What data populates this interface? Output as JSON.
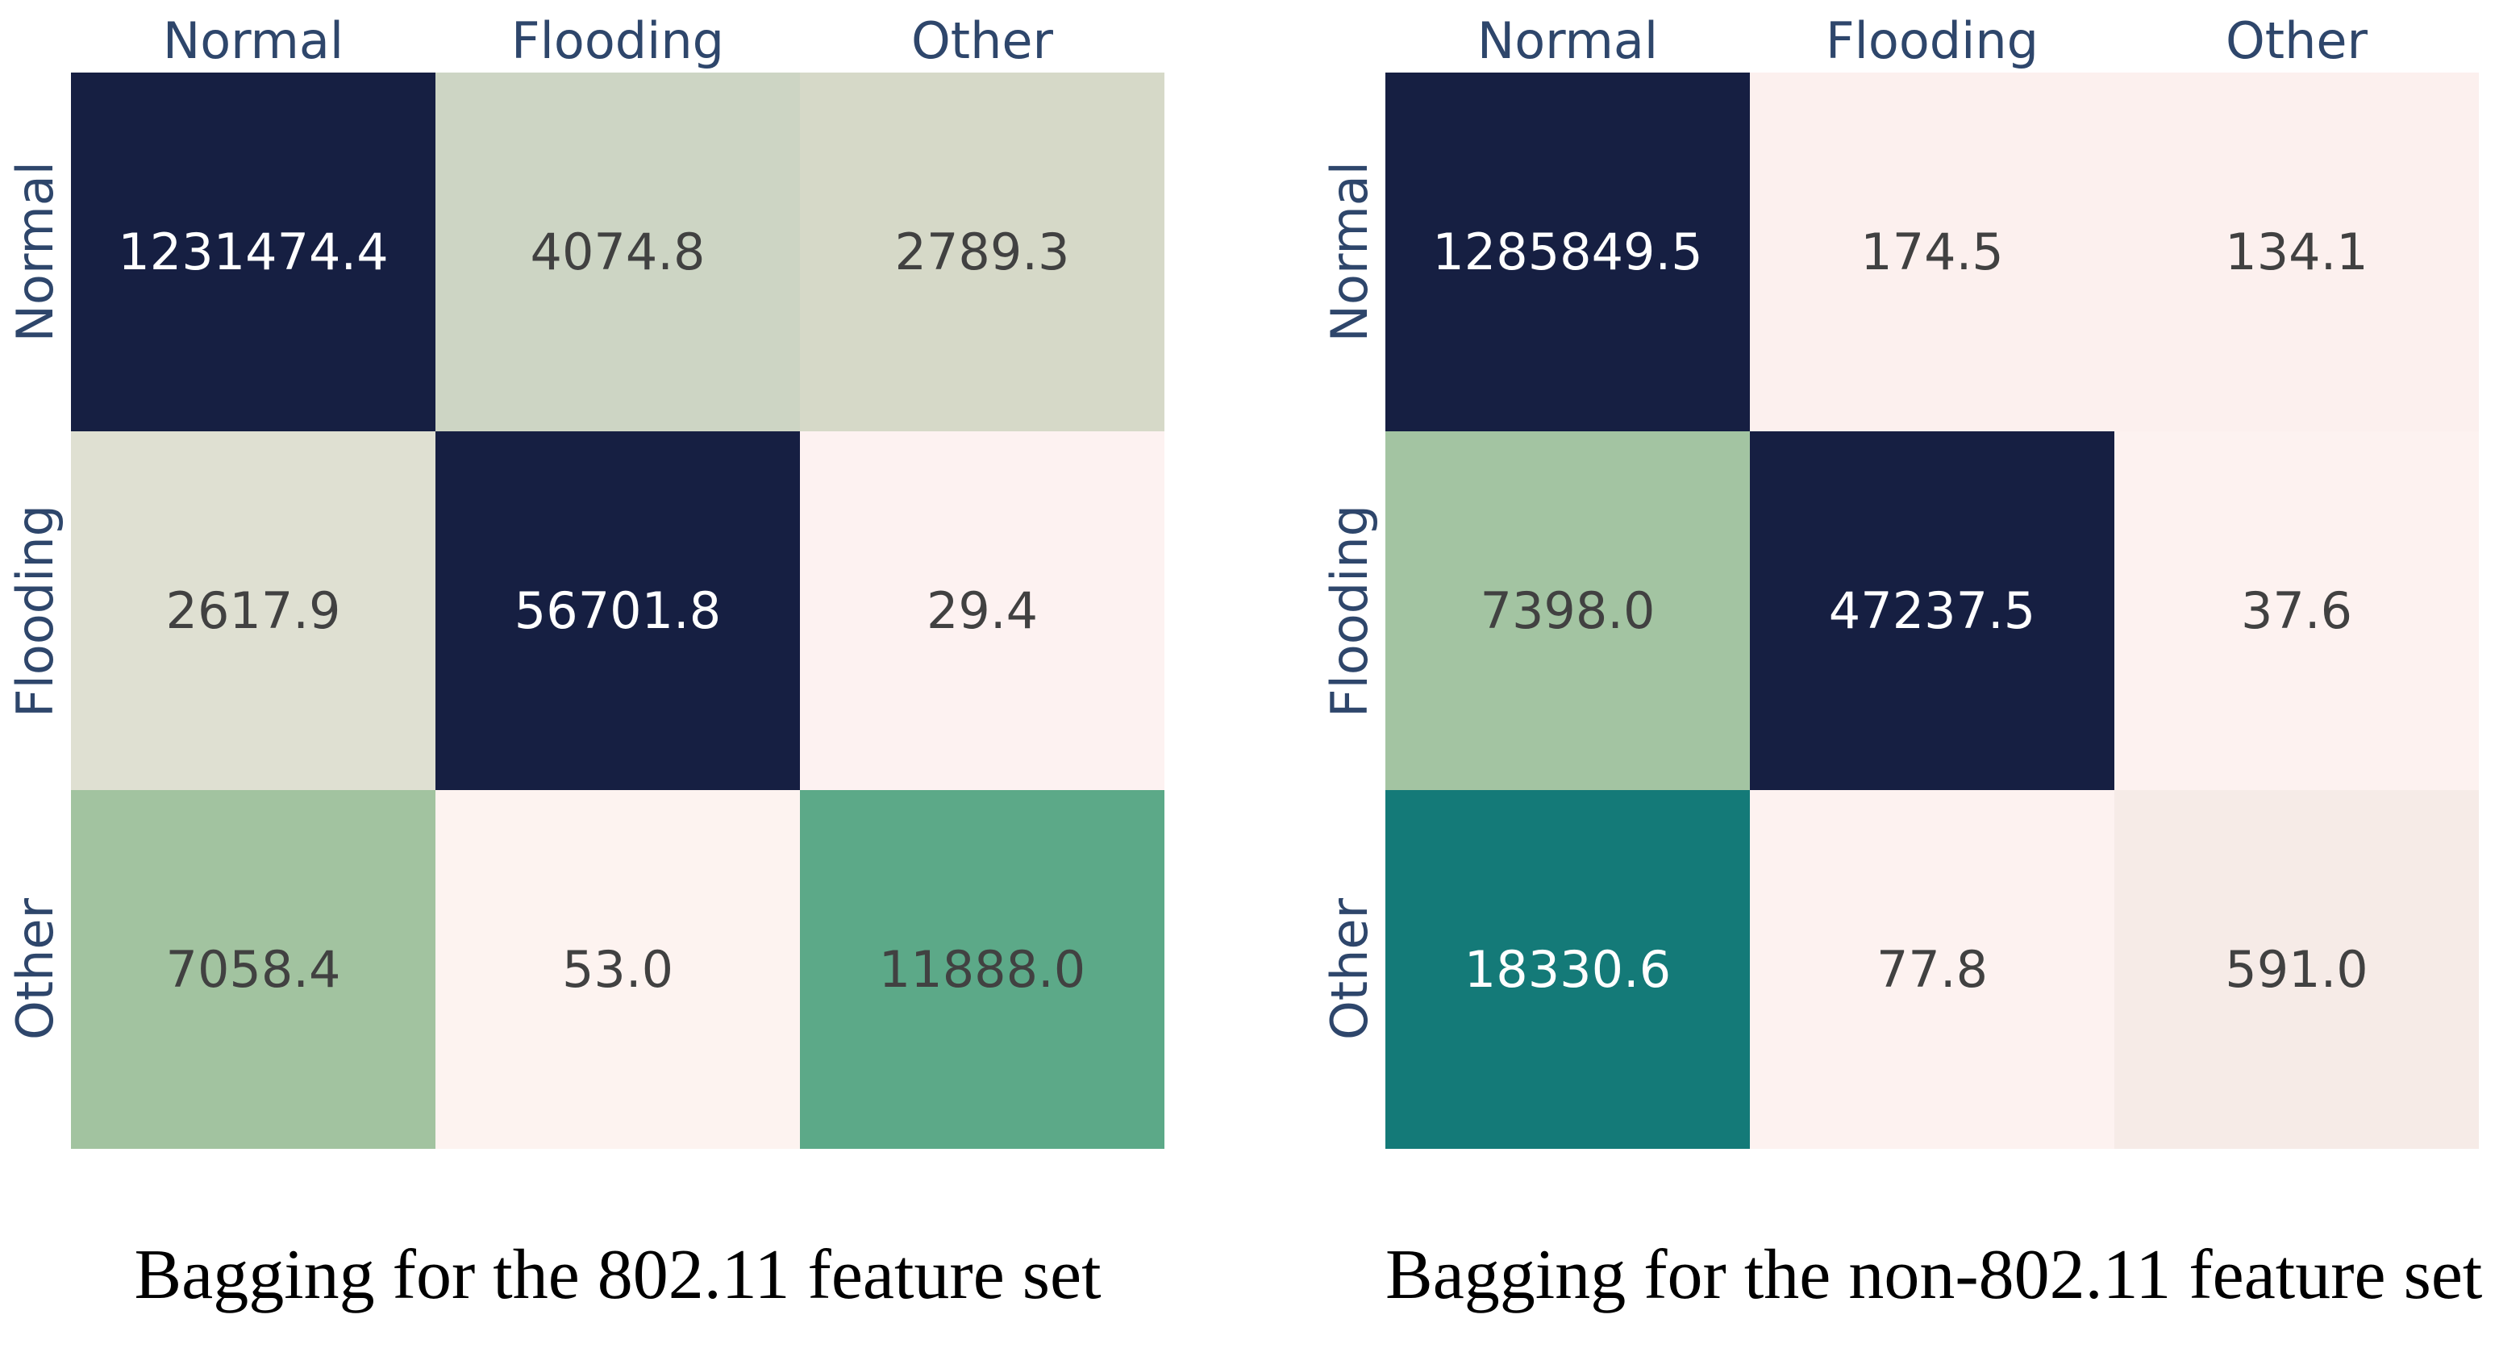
{
  "colors": {
    "background": "#ffffff",
    "axis_label": "#2e466b",
    "caption_text": "#000000",
    "navy_high": "#161f42",
    "teal": "#147a78",
    "value_text_dark": "#414141",
    "value_text_light": "#ffffff"
  },
  "panels": [
    {
      "caption": "Bagging for the 802.11 feature set",
      "col_headers": [
        "Normal",
        "Flooding",
        "Other"
      ],
      "row_headers": [
        "Normal",
        "Flooding",
        "Other"
      ],
      "rows": [
        [
          {
            "v": "1231474.4",
            "bg": "#161f42",
            "fg": "#ffffff"
          },
          {
            "v": "4074.8",
            "bg": "#cdd5c4",
            "fg": "#414141"
          },
          {
            "v": "2789.3",
            "bg": "#d6d9c8",
            "fg": "#414141"
          }
        ],
        [
          {
            "v": "2617.9",
            "bg": "#dfe0d2",
            "fg": "#414141"
          },
          {
            "v": "56701.8",
            "bg": "#161f42",
            "fg": "#ffffff"
          },
          {
            "v": "29.4",
            "bg": "#fdf2f1",
            "fg": "#414141"
          }
        ],
        [
          {
            "v": "7058.4",
            "bg": "#a2c3a0",
            "fg": "#414141"
          },
          {
            "v": "53.0",
            "bg": "#fdf3f0",
            "fg": "#414141"
          },
          {
            "v": "11888.0",
            "bg": "#5ca988",
            "fg": "#414141"
          }
        ]
      ]
    },
    {
      "caption": "Bagging for the non-802.11 feature set",
      "col_headers": [
        "Normal",
        "Flooding",
        "Other"
      ],
      "row_headers": [
        "Normal",
        "Flooding",
        "Other"
      ],
      "rows": [
        [
          {
            "v": "1285849.5",
            "bg": "#161f42",
            "fg": "#ffffff"
          },
          {
            "v": "174.5",
            "bg": "#fcf0ee",
            "fg": "#414141"
          },
          {
            "v": "134.1",
            "bg": "#fcf0ee",
            "fg": "#414141"
          }
        ],
        [
          {
            "v": "7398.0",
            "bg": "#a3c4a2",
            "fg": "#414141"
          },
          {
            "v": "47237.5",
            "bg": "#161f42",
            "fg": "#ffffff"
          },
          {
            "v": "37.6",
            "bg": "#fdf2f0",
            "fg": "#414141"
          }
        ],
        [
          {
            "v": "18330.6",
            "bg": "#147a78",
            "fg": "#ffffff"
          },
          {
            "v": "77.8",
            "bg": "#fdf2f0",
            "fg": "#414141"
          },
          {
            "v": "591.0",
            "bg": "#f6ebe7",
            "fg": "#414141"
          }
        ]
      ]
    }
  ],
  "chart_data": [
    {
      "type": "heatmap",
      "title": "Bagging for the 802.11 feature set",
      "x_labels": [
        "Normal",
        "Flooding",
        "Other"
      ],
      "y_labels": [
        "Normal",
        "Flooding",
        "Other"
      ],
      "values": [
        [
          1231474.4,
          4074.8,
          2789.3
        ],
        [
          2617.9,
          56701.8,
          29.4
        ],
        [
          7058.4,
          53.0,
          11888.0
        ]
      ],
      "legend_position": "none",
      "grid": false
    },
    {
      "type": "heatmap",
      "title": "Bagging for the non-802.11 feature set",
      "x_labels": [
        "Normal",
        "Flooding",
        "Other"
      ],
      "y_labels": [
        "Normal",
        "Flooding",
        "Other"
      ],
      "values": [
        [
          1285849.5,
          174.5,
          134.1
        ],
        [
          7398.0,
          47237.5,
          37.6
        ],
        [
          18330.6,
          77.8,
          591.0
        ]
      ],
      "legend_position": "none",
      "grid": false
    }
  ]
}
